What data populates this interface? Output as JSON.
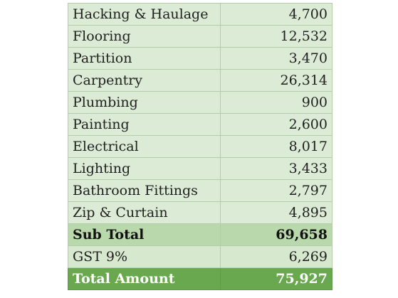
{
  "items": [
    {
      "label": "Hacking & Haulage",
      "amount": "4,700"
    },
    {
      "label": "Flooring",
      "amount": "12,532"
    },
    {
      "label": "Partition",
      "amount": "3,470"
    },
    {
      "label": "Carpentry",
      "amount": "26,314"
    },
    {
      "label": "Plumbing",
      "amount": "900"
    },
    {
      "label": "Painting",
      "amount": "2,600"
    },
    {
      "label": "Electrical",
      "amount": "8,017"
    },
    {
      "label": "Lighting",
      "amount": "3,433"
    },
    {
      "label": "Bathroom Fittings",
      "amount": "2,797"
    },
    {
      "label": "Zip & Curtain",
      "amount": "4,895"
    }
  ],
  "subtotal": {
    "label": "Sub Total",
    "amount": "69,658"
  },
  "gst": {
    "label": "GST 9%",
    "amount": "6,269"
  },
  "total": {
    "label": "Total Amount",
    "amount": "75,927"
  },
  "colors": {
    "row_fill": "#dcebd5",
    "subtotal_fill": "#b9d8ab",
    "total_fill": "#6aa84f",
    "border": "#b4cca8"
  }
}
